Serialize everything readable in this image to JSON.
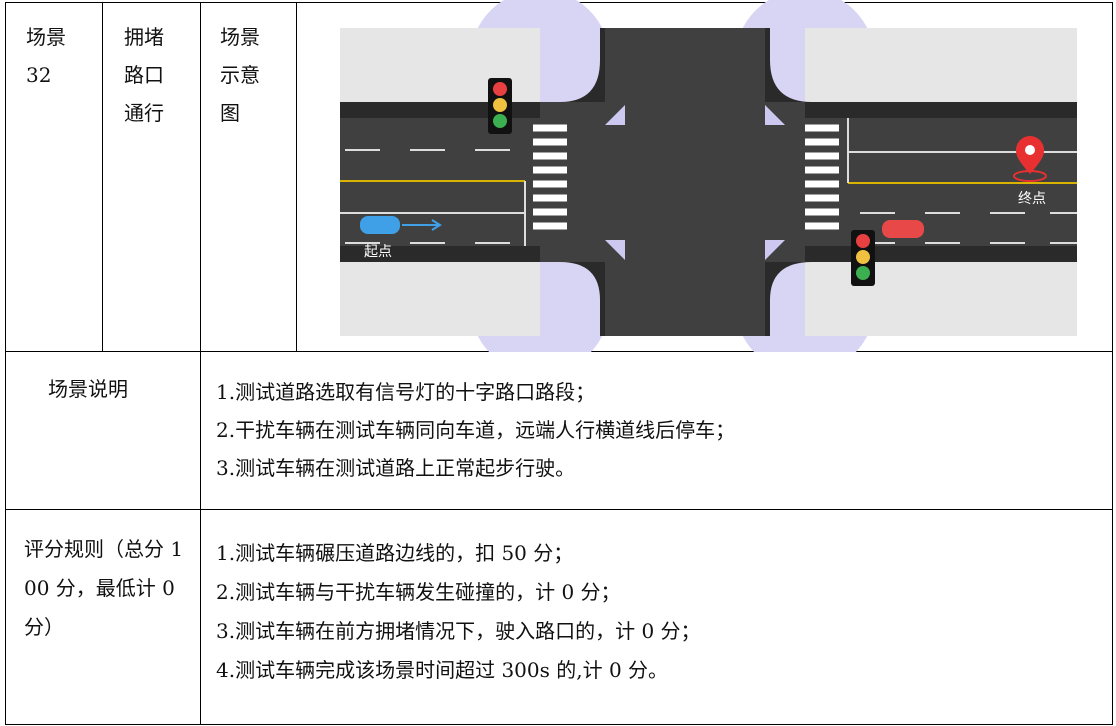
{
  "scenario": {
    "id_cell": "场景32",
    "name_cell": "拥堵路口通行",
    "diagram_label": "场景示意图",
    "diagram": {
      "start_label": "起点",
      "end_label": "终点"
    }
  },
  "description": {
    "label": "场景说明",
    "items": [
      "1.测试道路选取有信号灯的十字路口路段；",
      "2.干扰车辆在测试车辆同向车道，远端人行横道线后停车；",
      "3.测试车辆在测试道路上正常起步行驶。"
    ]
  },
  "scoring": {
    "label": "评分规则（总分 100 分，最低计 0 分）",
    "items": [
      "1.测试车辆碾压道路边线的，扣 50 分；",
      "2.测试车辆与干扰车辆发生碰撞的，计 0 分；",
      "3.测试车辆在前方拥堵情况下，驶入路口的，计 0 分；",
      "4.测试车辆完成该场景时间超过 300s 的,计 0 分。"
    ]
  }
}
